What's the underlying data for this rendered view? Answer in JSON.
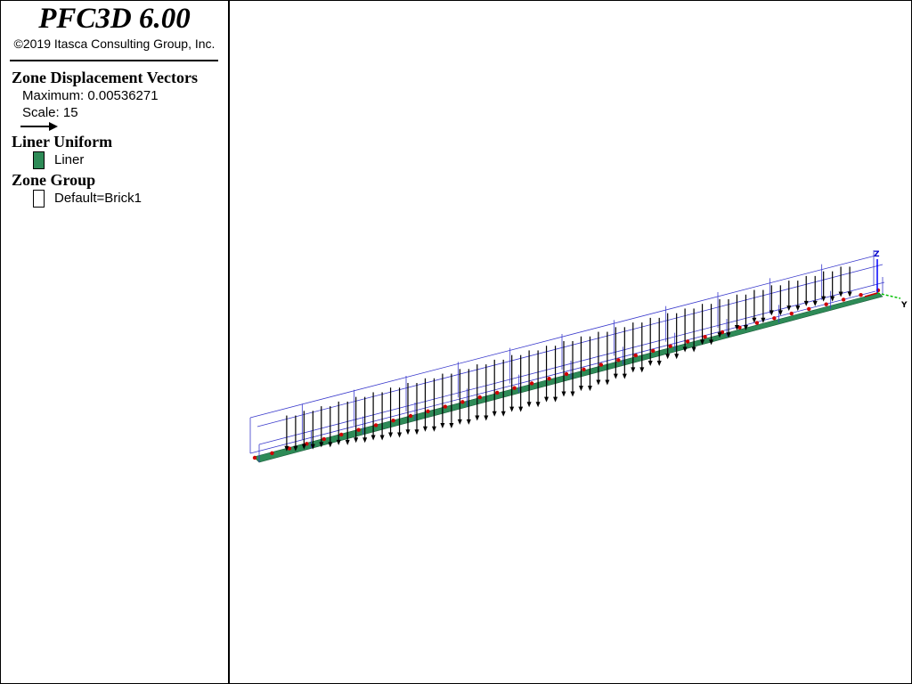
{
  "header": {
    "title": "PFC3D 6.00",
    "copyright": "©2019 Itasca Consulting Group, Inc."
  },
  "legend": [
    {
      "title": "Zone Displacement Vectors",
      "lines": [
        "Maximum: 0.00536271",
        "Scale: 15"
      ]
    },
    {
      "title": "Liner Uniform",
      "items": [
        "Liner"
      ]
    },
    {
      "title": "Zone Group",
      "items": [
        "Default=Brick1"
      ]
    }
  ],
  "axes": {
    "z": "Z",
    "y": "Y"
  }
}
